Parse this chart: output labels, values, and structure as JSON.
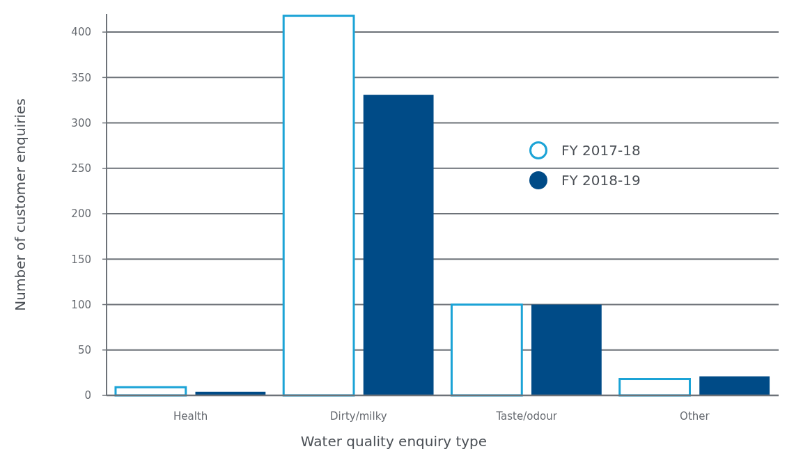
{
  "chart_data": {
    "type": "bar",
    "xlabel": "Water quality enquiry type",
    "ylabel": "Number of customer enquiries",
    "categories": [
      "Health",
      "Dirty/milky",
      "Taste/odour",
      "Other"
    ],
    "series": [
      {
        "name": "FY 2017-18",
        "color": "#1ba3d6",
        "values": [
          9,
          418,
          100,
          18
        ]
      },
      {
        "name": "FY 2018-19",
        "color": "#004b87",
        "values": [
          4,
          331,
          100,
          21
        ]
      }
    ],
    "ylim": [
      0,
      420
    ],
    "yticks": [
      0,
      50,
      100,
      150,
      200,
      250,
      300,
      350,
      400
    ],
    "grid": "y",
    "legend": "right"
  }
}
